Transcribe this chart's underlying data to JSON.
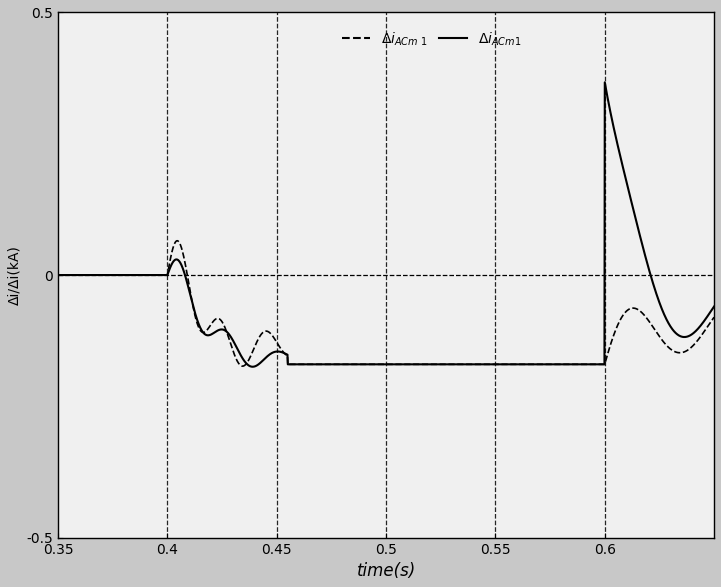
{
  "xlim": [
    0.35,
    0.65
  ],
  "ylim": [
    -0.5,
    0.5
  ],
  "xlabel": "time(s)",
  "ylabel": "Δi/Δi(kA)",
  "xticks": [
    0.35,
    0.4,
    0.45,
    0.5,
    0.55,
    0.6
  ],
  "yticks": [
    -0.5,
    0,
    0.5
  ],
  "vlines": [
    0.4,
    0.45,
    0.5,
    0.55,
    0.6
  ],
  "bg_color": "#c8c8c8",
  "plot_bg_color": "#f0f0f0",
  "line_color": "#000000",
  "figsize": [
    7.21,
    5.87
  ],
  "dpi": 100
}
